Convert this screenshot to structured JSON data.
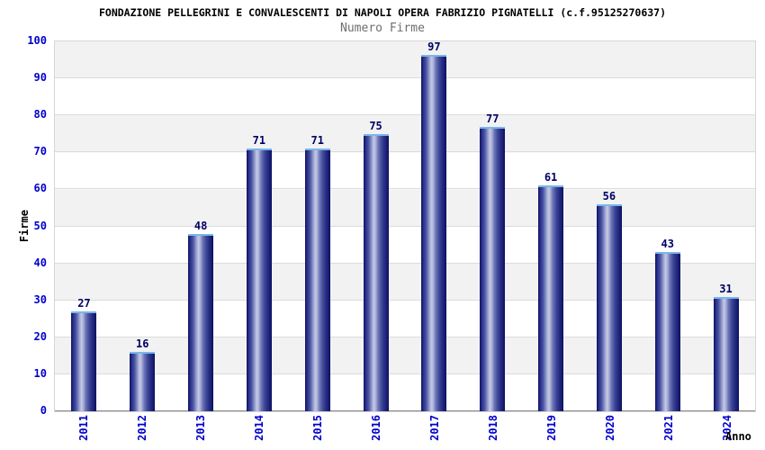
{
  "chart_data": {
    "type": "bar",
    "title": "FONDAZIONE PELLEGRINI E CONVALESCENTI DI NAPOLI OPERA FABRIZIO PIGNATELLI (c.f.95125270637)",
    "subtitle": "Numero Firme",
    "categories": [
      "2011",
      "2012",
      "2013",
      "2014",
      "2015",
      "2016",
      "2017",
      "2018",
      "2019",
      "2020",
      "2021",
      "2024"
    ],
    "values": [
      27,
      16,
      48,
      71,
      71,
      75,
      97,
      77,
      61,
      56,
      43,
      31
    ],
    "xlabel": "Anno",
    "ylabel": "Firme",
    "ylim": [
      0,
      100
    ],
    "ytick_step": 10,
    "ytick_labels": [
      "100",
      "90",
      "80",
      "70",
      "60",
      "50",
      "40",
      "30",
      "20",
      "10",
      "0"
    ],
    "grid": "horizontal",
    "legend": "none",
    "colors": {
      "bar_edge": "#0e1160",
      "bar_highlight": "#c6cae4",
      "bar_top_cap": "#79b6ec",
      "axis_tick_label": "#0000cc",
      "value_label": "#000066",
      "band_gray": "#f2f2f2",
      "gridline": "#dcdcdc",
      "subtitle_gray": "#6e6e6e"
    }
  }
}
